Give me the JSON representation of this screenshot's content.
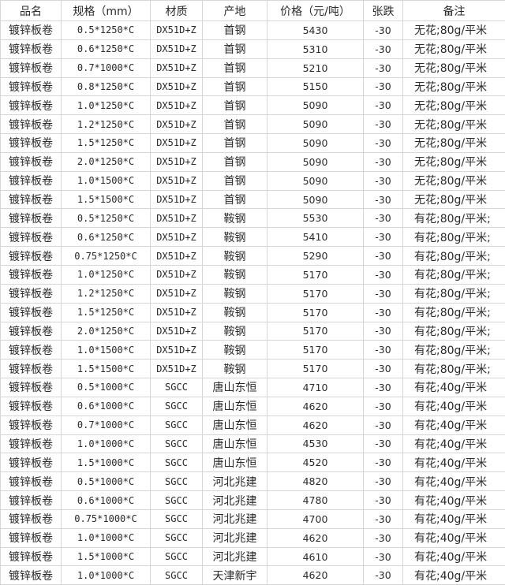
{
  "table": {
    "headers": [
      "品名",
      "规格（mm）",
      "材质",
      "产地",
      "价格（元/吨）",
      "张跌",
      "备注"
    ],
    "rows": [
      [
        "镀锌板卷",
        "0.5*1250*C",
        "DX51D+Z",
        "首钢",
        "5430",
        "-30",
        "无花;80g/平米"
      ],
      [
        "镀锌板卷",
        "0.6*1250*C",
        "DX51D+Z",
        "首钢",
        "5310",
        "-30",
        "无花;80g/平米"
      ],
      [
        "镀锌板卷",
        "0.7*1000*C",
        "DX51D+Z",
        "首钢",
        "5210",
        "-30",
        "无花;80g/平米"
      ],
      [
        "镀锌板卷",
        "0.8*1250*C",
        "DX51D+Z",
        "首钢",
        "5150",
        "-30",
        "无花;80g/平米"
      ],
      [
        "镀锌板卷",
        "1.0*1250*C",
        "DX51D+Z",
        "首钢",
        "5090",
        "-30",
        "无花;80g/平米"
      ],
      [
        "镀锌板卷",
        "1.2*1250*C",
        "DX51D+Z",
        "首钢",
        "5090",
        "-30",
        "无花;80g/平米"
      ],
      [
        "镀锌板卷",
        "1.5*1250*C",
        "DX51D+Z",
        "首钢",
        "5090",
        "-30",
        "无花;80g/平米"
      ],
      [
        "镀锌板卷",
        "2.0*1250*C",
        "DX51D+Z",
        "首钢",
        "5090",
        "-30",
        "无花;80g/平米"
      ],
      [
        "镀锌板卷",
        "1.0*1500*C",
        "DX51D+Z",
        "首钢",
        "5090",
        "-30",
        "无花;80g/平米"
      ],
      [
        "镀锌板卷",
        "1.5*1500*C",
        "DX51D+Z",
        "首钢",
        "5090",
        "-30",
        "无花;80g/平米"
      ],
      [
        "镀锌板卷",
        "0.5*1250*C",
        "DX51D+Z",
        "鞍钢",
        "5530",
        "-30",
        "有花;80g/平米;"
      ],
      [
        "镀锌板卷",
        "0.6*1250*C",
        "DX51D+Z",
        "鞍钢",
        "5410",
        "-30",
        "有花;80g/平米;"
      ],
      [
        "镀锌板卷",
        "0.75*1250*C",
        "DX51D+Z",
        "鞍钢",
        "5290",
        "-30",
        "有花;80g/平米;"
      ],
      [
        "镀锌板卷",
        "1.0*1250*C",
        "DX51D+Z",
        "鞍钢",
        "5170",
        "-30",
        "有花;80g/平米;"
      ],
      [
        "镀锌板卷",
        "1.2*1250*C",
        "DX51D+Z",
        "鞍钢",
        "5170",
        "-30",
        "有花;80g/平米;"
      ],
      [
        "镀锌板卷",
        "1.5*1250*C",
        "DX51D+Z",
        "鞍钢",
        "5170",
        "-30",
        "有花;80g/平米;"
      ],
      [
        "镀锌板卷",
        "2.0*1250*C",
        "DX51D+Z",
        "鞍钢",
        "5170",
        "-30",
        "有花;80g/平米;"
      ],
      [
        "镀锌板卷",
        "1.0*1500*C",
        "DX51D+Z",
        "鞍钢",
        "5170",
        "-30",
        "有花;80g/平米;"
      ],
      [
        "镀锌板卷",
        "1.5*1500*C",
        "DX51D+Z",
        "鞍钢",
        "5170",
        "-30",
        "有花;80g/平米;"
      ],
      [
        "镀锌板卷",
        "0.5*1000*C",
        "SGCC",
        "唐山东恒",
        "4710",
        "-30",
        "有花;40g/平米"
      ],
      [
        "镀锌板卷",
        "0.6*1000*C",
        "SGCC",
        "唐山东恒",
        "4620",
        "-30",
        "有花;40g/平米"
      ],
      [
        "镀锌板卷",
        "0.7*1000*C",
        "SGCC",
        "唐山东恒",
        "4620",
        "-30",
        "有花;40g/平米"
      ],
      [
        "镀锌板卷",
        "1.0*1000*C",
        "SGCC",
        "唐山东恒",
        "4530",
        "-30",
        "有花;40g/平米"
      ],
      [
        "镀锌板卷",
        "1.5*1000*C",
        "SGCC",
        "唐山东恒",
        "4520",
        "-30",
        "有花;40g/平米"
      ],
      [
        "镀锌板卷",
        "0.5*1000*C",
        "SGCC",
        "河北兆建",
        "4820",
        "-30",
        "有花;40g/平米"
      ],
      [
        "镀锌板卷",
        "0.6*1000*C",
        "SGCC",
        "河北兆建",
        "4780",
        "-30",
        "有花;40g/平米"
      ],
      [
        "镀锌板卷",
        "0.75*1000*C",
        "SGCC",
        "河北兆建",
        "4700",
        "-30",
        "有花;40g/平米"
      ],
      [
        "镀锌板卷",
        "1.0*1000*C",
        "SGCC",
        "河北兆建",
        "4620",
        "-30",
        "有花;40g/平米"
      ],
      [
        "镀锌板卷",
        "1.5*1000*C",
        "SGCC",
        "河北兆建",
        "4610",
        "-30",
        "有花;40g/平米"
      ],
      [
        "镀锌板卷",
        "1.0*1000*C",
        "SGCC",
        "天津新宇",
        "4620",
        "-30",
        "有花;40g/平米"
      ]
    ]
  }
}
